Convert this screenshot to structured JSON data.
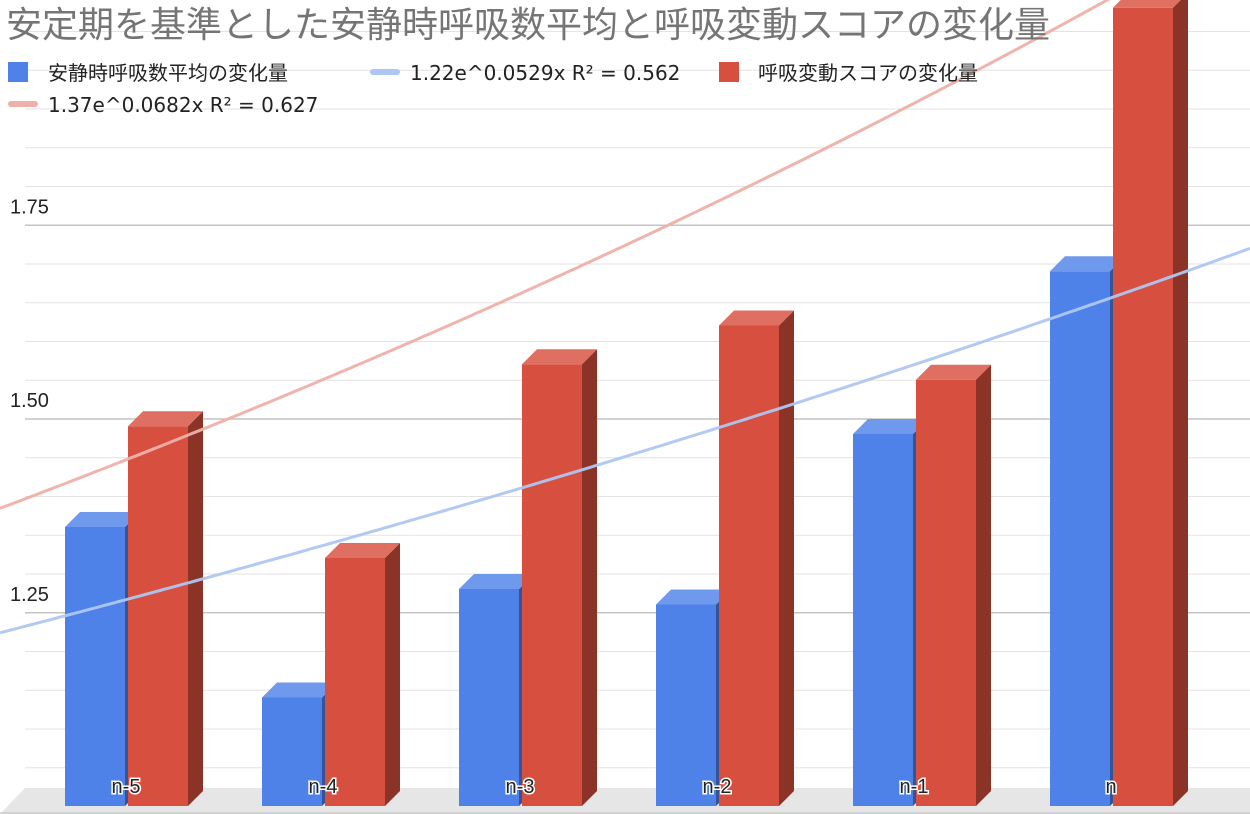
{
  "chart_data": {
    "type": "bar",
    "title": "安定期を基準とした安静時呼吸数平均と呼吸変動スコアの変化量",
    "categories": [
      "n-5",
      "n-4",
      "n-3",
      "n-2",
      "n-1",
      "n"
    ],
    "series": [
      {
        "name": "安静時呼吸数平均の変化量",
        "color": "#4f82e8",
        "values": [
          1.38,
          1.16,
          1.3,
          1.28,
          1.5,
          1.71
        ]
      },
      {
        "name": "呼吸変動スコアの変化量",
        "color": "#d74f3e",
        "values": [
          1.51,
          1.34,
          1.59,
          1.64,
          1.57,
          2.05
        ]
      }
    ],
    "trendlines": [
      {
        "label": "1.22e^0.0529x R² = 0.562",
        "color": "#aec7f2",
        "a": 1.22,
        "b": 0.0529
      },
      {
        "label": "1.37e^0.0682x R² = 0.627",
        "color": "#eeb1a9",
        "a": 1.37,
        "b": 0.0682
      }
    ],
    "ylabel": "",
    "xlabel": "",
    "y_ticks": [
      "1.25",
      "1.50",
      "1.75"
    ],
    "y_tick_values": [
      1.25,
      1.5,
      1.75
    ],
    "ylim": [
      1.02,
      2.06
    ],
    "grid": true,
    "legend_position": "top-left",
    "style": "3d-columns"
  }
}
